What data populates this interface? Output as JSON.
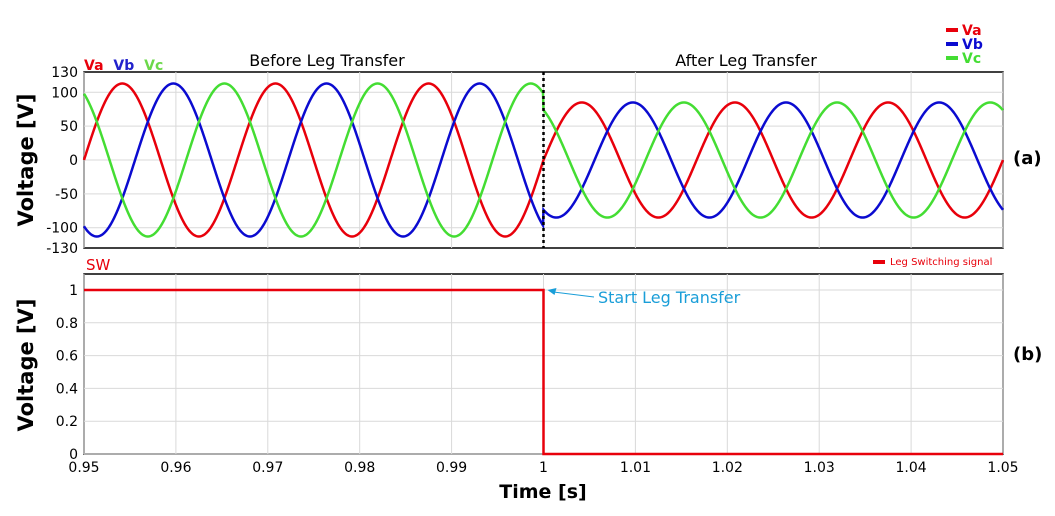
{
  "chart_data": [
    {
      "type": "line",
      "panel_tag": "(a)",
      "ylabel": "Voltage [V]",
      "ylim": [
        -130,
        130
      ],
      "yticks": [
        "130",
        "100",
        "50",
        "0",
        "-50",
        "-100",
        "-130"
      ],
      "xlim": [
        0.95,
        1.05
      ],
      "section_labels": [
        "Before Leg Transfer",
        "After Leg Transfer"
      ],
      "transfer_time": 1.0,
      "inline_labels": [
        {
          "text": "Va",
          "color": "#e8000b"
        },
        {
          "text": "Vb",
          "color": "#2222cc"
        },
        {
          "text": "Vc",
          "color": "#6cd84a"
        }
      ],
      "legend": [
        {
          "text": "Va",
          "color": "#e8000b"
        },
        {
          "text": "Vb",
          "color": "#0b0bd0"
        },
        {
          "text": "Vc",
          "color": "#44dd33"
        }
      ],
      "frequency_hz": 60,
      "series": [
        {
          "name": "Va",
          "color": "#e8000b",
          "amplitude_before": 113,
          "amplitude_after": 85,
          "phase_deg": 0
        },
        {
          "name": "Vb",
          "color": "#0b0bd0",
          "amplitude_before": 113,
          "amplitude_after": 85,
          "phase_deg": -120
        },
        {
          "name": "Vc",
          "color": "#44dd33",
          "amplitude_before": 113,
          "amplitude_after": 85,
          "phase_deg": 120
        }
      ]
    },
    {
      "type": "line",
      "panel_tag": "(b)",
      "signal_label": "SW",
      "ylabel": "Voltage [V]",
      "xlabel": "Time [s]",
      "ylim": [
        0,
        1
      ],
      "yticks": [
        "1",
        "0.8",
        "0.6",
        "0.4",
        "0.2",
        "0"
      ],
      "xlim": [
        0.95,
        1.05
      ],
      "xticks": [
        "0.95",
        "0.96",
        "0.97",
        "0.98",
        "0.99",
        "1",
        "1.01",
        "1.02",
        "1.03",
        "1.04",
        "1.05"
      ],
      "legend": [
        {
          "text": "Leg Switching signal",
          "color": "#e8000b"
        }
      ],
      "annotation": {
        "text": "Start Leg Transfer",
        "color": "#1a9ed8",
        "x": 1.0,
        "y": 1
      },
      "series": [
        {
          "name": "Leg Switching signal",
          "color": "#e8000b",
          "x": [
            0.95,
            1.0,
            1.0,
            1.05
          ],
          "y": [
            1,
            1,
            0,
            0
          ]
        }
      ]
    }
  ]
}
